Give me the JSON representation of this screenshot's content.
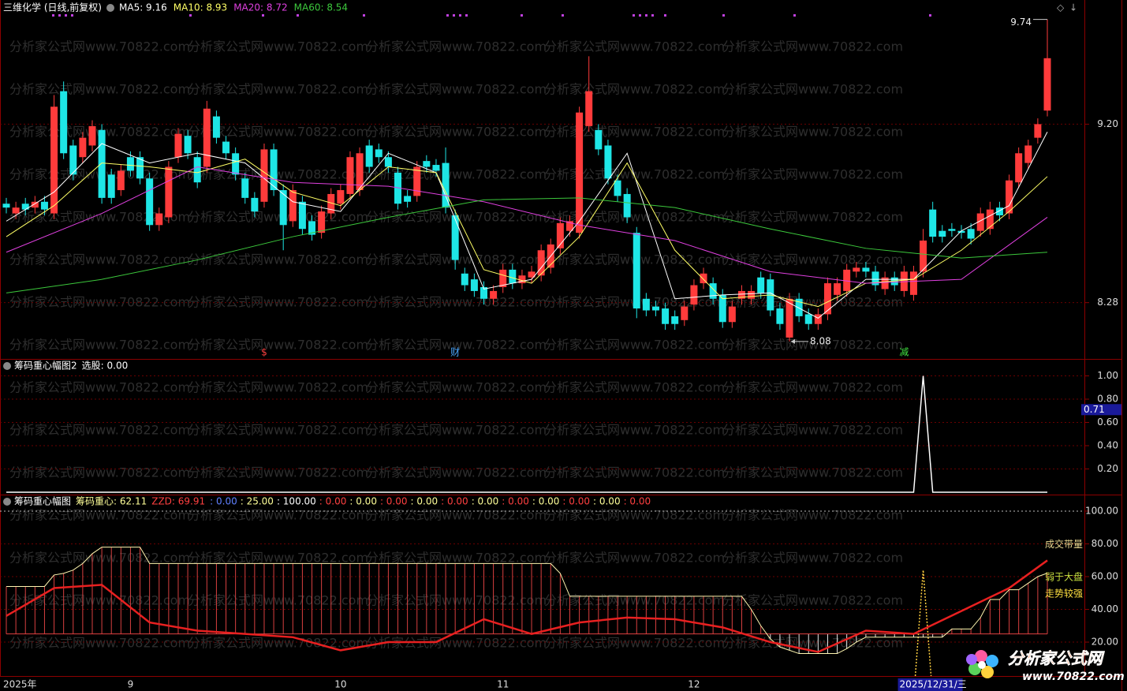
{
  "chart_data": [
    {
      "type": "candlestick",
      "title": "三维化学 (日线,前复权)",
      "open": [
        8.79,
        8.74,
        8.79,
        8.77,
        8.8,
        8.74,
        9.37,
        9.09,
        9.03,
        9.09,
        9.17,
        8.94,
        8.86,
        9.03,
        9.03,
        8.92,
        8.68,
        8.72,
        9.03,
        9.14,
        9.03,
        8.98,
        9.24,
        9.11,
        9.05,
        8.92,
        8.82,
        8.8,
        9.07,
        8.86,
        8.7,
        8.8,
        8.7,
        8.64,
        8.74,
        8.79,
        8.84,
        8.86,
        9.09,
        9.07,
        9.03,
        8.95,
        8.83,
        8.83,
        9.01,
        8.99,
        9.0,
        8.73,
        8.43,
        8.4,
        8.36,
        8.3,
        8.36,
        8.45,
        8.38,
        8.41,
        8.42,
        8.46,
        8.56,
        8.65,
        8.64,
        9.19,
        9.17,
        9.09,
        8.91,
        8.84,
        8.64,
        8.3,
        8.26,
        8.25,
        8.21,
        8.19,
        8.27,
        8.38,
        8.38,
        8.32,
        8.18,
        8.3,
        8.3,
        8.41,
        8.4,
        8.25,
        8.1,
        8.3,
        8.22,
        8.17,
        8.22,
        8.32,
        8.34,
        8.44,
        8.46,
        8.44,
        8.35,
        8.41,
        8.34,
        8.32,
        8.44,
        8.76,
        8.65,
        8.66,
        8.65,
        8.66,
        8.65,
        8.66,
        8.77,
        8.74,
        8.9,
        9.0,
        9.13,
        9.27
      ],
      "close": [
        8.77,
        8.77,
        8.76,
        8.8,
        8.76,
        9.29,
        9.05,
        8.94,
        9.13,
        9.19,
        8.82,
        8.82,
        8.96,
        8.96,
        8.92,
        8.68,
        8.74,
        8.98,
        9.15,
        9.05,
        8.9,
        9.28,
        9.13,
        9.05,
        8.94,
        8.82,
        8.75,
        9.07,
        8.86,
        8.68,
        8.86,
        8.66,
        8.63,
        8.75,
        8.84,
        8.86,
        9.03,
        9.05,
        8.98,
        9.03,
        8.98,
        8.79,
        8.8,
        8.98,
        8.98,
        8.96,
        8.77,
        8.5,
        8.37,
        8.34,
        8.3,
        8.34,
        8.45,
        8.38,
        8.42,
        8.44,
        8.55,
        8.58,
        8.69,
        8.7,
        9.26,
        9.37,
        9.07,
        8.92,
        8.83,
        8.72,
        8.25,
        8.24,
        8.24,
        8.17,
        8.17,
        8.26,
        8.37,
        8.43,
        8.3,
        8.18,
        8.26,
        8.34,
        8.34,
        8.33,
        8.24,
        8.17,
        8.3,
        8.21,
        8.17,
        8.22,
        8.38,
        8.38,
        8.45,
        8.46,
        8.44,
        8.37,
        8.41,
        8.37,
        8.44,
        8.44,
        8.6,
        8.62,
        8.62,
        8.65,
        8.64,
        8.61,
        8.74,
        8.76,
        8.73,
        8.91,
        9.05,
        9.09,
        9.2,
        9.54
      ],
      "high": [
        8.82,
        8.8,
        8.82,
        8.83,
        8.83,
        9.35,
        9.42,
        9.12,
        9.16,
        9.22,
        9.2,
        8.97,
        8.99,
        9.06,
        9.06,
        8.95,
        8.77,
        9.01,
        9.18,
        9.17,
        9.06,
        9.32,
        9.27,
        9.14,
        9.08,
        8.95,
        8.85,
        9.1,
        9.1,
        8.89,
        8.89,
        8.83,
        8.73,
        8.78,
        8.87,
        8.89,
        9.06,
        9.08,
        9.12,
        9.1,
        9.06,
        8.98,
        8.86,
        9.01,
        9.04,
        9.02,
        9.08,
        8.76,
        8.46,
        8.43,
        8.39,
        8.37,
        8.48,
        8.48,
        8.45,
        8.47,
        8.58,
        8.61,
        8.72,
        8.73,
        9.29,
        9.55,
        9.2,
        9.12,
        8.94,
        8.87,
        8.67,
        8.33,
        8.29,
        8.28,
        8.24,
        8.29,
        8.4,
        8.46,
        8.41,
        8.35,
        8.29,
        8.37,
        8.37,
        8.44,
        8.43,
        8.28,
        8.33,
        8.33,
        8.25,
        8.25,
        8.41,
        8.41,
        8.48,
        8.49,
        8.49,
        8.47,
        8.44,
        8.44,
        8.47,
        8.47,
        8.66,
        8.8,
        8.68,
        8.69,
        8.68,
        8.69,
        8.77,
        8.8,
        8.8,
        8.94,
        9.08,
        9.12,
        9.23,
        9.74
      ],
      "low": [
        8.74,
        8.71,
        8.73,
        8.74,
        8.73,
        8.71,
        9.02,
        8.91,
        9.0,
        9.06,
        8.79,
        8.79,
        8.83,
        8.93,
        8.89,
        8.65,
        8.65,
        8.69,
        9.0,
        9.02,
        8.87,
        8.95,
        9.1,
        9.02,
        8.91,
        8.79,
        8.72,
        8.77,
        8.83,
        8.55,
        8.67,
        8.63,
        8.6,
        8.61,
        8.71,
        8.76,
        8.81,
        8.83,
        8.95,
        9.0,
        8.95,
        8.76,
        8.77,
        8.8,
        8.95,
        8.93,
        8.74,
        8.45,
        8.34,
        8.31,
        8.27,
        8.27,
        8.33,
        8.35,
        8.35,
        8.38,
        8.39,
        8.43,
        8.53,
        8.62,
        8.61,
        9.16,
        9.04,
        8.89,
        8.8,
        8.69,
        8.2,
        8.21,
        8.21,
        8.14,
        8.14,
        8.16,
        8.24,
        8.35,
        8.27,
        8.15,
        8.15,
        8.27,
        8.27,
        8.3,
        8.21,
        8.14,
        8.08,
        8.18,
        8.14,
        8.14,
        8.19,
        8.29,
        8.31,
        8.41,
        8.41,
        8.34,
        8.32,
        8.34,
        8.31,
        8.29,
        8.41,
        8.59,
        8.59,
        8.62,
        8.61,
        8.58,
        8.62,
        8.63,
        8.7,
        8.71,
        8.87,
        8.97,
        9.1,
        9.24
      ],
      "up_color": "#ff3b3b",
      "down_color": "#1ee6e6",
      "series": [
        {
          "name": "MA5: 9.16",
          "color": "#ffffff",
          "x": [
            0,
            5,
            10,
            15,
            20,
            25,
            30,
            35,
            40,
            45,
            50,
            55,
            60,
            65,
            70,
            75,
            80,
            85,
            90,
            95,
            100,
            105,
            109
          ],
          "values": [
            8.7,
            8.85,
            9.1,
            9.0,
            9.05,
            9.0,
            8.8,
            8.75,
            9.05,
            8.95,
            8.35,
            8.4,
            8.7,
            9.05,
            8.3,
            8.32,
            8.33,
            8.2,
            8.4,
            8.4,
            8.65,
            8.78,
            9.16
          ]
        },
        {
          "name": "MA10: 8.93",
          "color": "#ffff66",
          "x": [
            0,
            5,
            10,
            15,
            20,
            25,
            30,
            35,
            40,
            45,
            50,
            55,
            60,
            65,
            70,
            75,
            80,
            85,
            90,
            95,
            100,
            105,
            109
          ],
          "values": [
            8.62,
            8.78,
            9.0,
            8.98,
            8.95,
            9.02,
            8.85,
            8.78,
            8.98,
            8.95,
            8.45,
            8.38,
            8.62,
            9.0,
            8.55,
            8.3,
            8.32,
            8.26,
            8.38,
            8.4,
            8.55,
            8.75,
            8.93
          ]
        },
        {
          "name": "MA20: 8.72",
          "color": "#e040e0",
          "x": [
            0,
            10,
            20,
            30,
            40,
            50,
            60,
            70,
            80,
            90,
            100,
            109
          ],
          "values": [
            8.54,
            8.74,
            8.98,
            8.9,
            8.88,
            8.8,
            8.68,
            8.6,
            8.44,
            8.38,
            8.4,
            8.72
          ]
        },
        {
          "name": "MA60: 8.54",
          "color": "#3cc83c",
          "x": [
            0,
            10,
            20,
            30,
            40,
            50,
            60,
            70,
            80,
            90,
            100,
            109
          ],
          "values": [
            8.33,
            8.4,
            8.5,
            8.62,
            8.72,
            8.81,
            8.82,
            8.77,
            8.66,
            8.56,
            8.51,
            8.54
          ]
        }
      ],
      "ylim": [
        7.99,
        9.84
      ],
      "yticks": [
        {
          "value": 9.2,
          "label": "9.20"
        },
        8.28
      ],
      "annotations": [
        {
          "value": 9.74,
          "index": 109
        },
        {
          "value": 8.08,
          "index": 82
        }
      ],
      "markers": [
        {
          "text": "$",
          "index": 27,
          "color": "#ff4040"
        },
        {
          "text": "财",
          "index": 47,
          "color": "#4aa8ff"
        },
        {
          "text": "减",
          "index": 94,
          "color": "#40e040"
        }
      ]
    },
    {
      "type": "line",
      "title": "筹码重心幅图2",
      "subtitle": "选股: 0.00",
      "color": "#ffffff",
      "values": [
        0,
        0,
        0,
        0,
        0,
        0,
        0,
        0,
        0,
        0,
        0,
        0,
        0,
        0,
        0,
        0,
        0,
        0,
        0,
        0,
        0,
        0,
        0,
        0,
        0,
        0,
        0,
        0,
        0,
        0,
        0,
        0,
        0,
        0,
        0,
        0,
        0,
        0,
        0,
        0,
        0,
        0,
        0,
        0,
        0,
        0,
        0,
        0,
        0,
        0,
        0,
        0,
        0,
        0,
        0,
        0,
        0,
        0,
        0,
        0,
        0,
        0,
        0,
        0,
        0,
        0,
        0,
        0,
        0,
        0,
        0,
        0,
        0,
        0,
        0,
        0,
        0,
        0,
        0,
        0,
        0,
        0,
        0,
        0,
        0,
        0,
        0,
        0,
        0,
        0,
        0,
        0,
        0,
        0,
        0,
        0,
        1,
        0,
        0,
        0,
        0,
        0,
        0,
        0,
        0,
        0,
        0,
        0,
        0,
        0
      ],
      "ylim": [
        0,
        1.146
      ],
      "yticks": [
        {
          "value": 0.2,
          "label": "0.20"
        },
        {
          "value": 0.4,
          "label": "0.40"
        },
        {
          "value": 0.6,
          "label": "0.60"
        },
        {
          "value": 0.8,
          "label": "0.80"
        },
        {
          "value": 1,
          "label": "1.00"
        }
      ],
      "cursor_value": 0.71
    },
    {
      "type": "line",
      "title": "筹码重心幅图",
      "series": [
        {
          "name": "筹码重心: 62.11",
          "color": "#fff6b0",
          "values": [
            54,
            54,
            54,
            54,
            54,
            61,
            62,
            64,
            68,
            74,
            78,
            78,
            78,
            78,
            78,
            68,
            68,
            68,
            68,
            68,
            68,
            68,
            68,
            68,
            68,
            68,
            68,
            68,
            68,
            68,
            68,
            68,
            68,
            68,
            68,
            68,
            68,
            68,
            68,
            68,
            68,
            68,
            68,
            68,
            68,
            68,
            68,
            68,
            68,
            68,
            68,
            68,
            68,
            68,
            68,
            68,
            68,
            68,
            62,
            48,
            48,
            48,
            48,
            48,
            48,
            48,
            48,
            48,
            48,
            48,
            48,
            48,
            48,
            48,
            48,
            48,
            48,
            48,
            40,
            30,
            22,
            17,
            15,
            13,
            13,
            13,
            13,
            13,
            16,
            20,
            23,
            23,
            23,
            23,
            23,
            23,
            23,
            23,
            23,
            28,
            28,
            28,
            35,
            46,
            46,
            52,
            52,
            56,
            60,
            62.11
          ]
        },
        {
          "name": "ZZD: 69.91",
          "color": "#e82020",
          "x": [
            0,
            5,
            10,
            15,
            20,
            25,
            30,
            35,
            40,
            45,
            50,
            55,
            60,
            65,
            70,
            75,
            80,
            85,
            90,
            95,
            100,
            105,
            109
          ],
          "values": [
            36,
            53,
            55,
            32,
            27,
            25,
            23,
            15,
            20,
            20,
            34,
            25,
            32,
            35,
            34,
            29,
            20,
            14,
            27,
            25,
            39,
            53,
            69.91
          ]
        }
      ],
      "baseline": 25,
      "header_values": [
        ": 0.00",
        ": 25.00",
        ": 100.00",
        ": 0.00",
        ": 0.00",
        ": 0.00",
        ": 0.00",
        ": 0.00",
        ": 0.00",
        ": 0.00",
        ": 0.00",
        ": 0.00",
        ": 0.00",
        ": 0.00"
      ],
      "side_labels": [
        {
          "text": "成交带量",
          "color": "#e8d890",
          "value": 80
        },
        {
          "text": "弱于大盘",
          "color": "#c8e040",
          "value": 60
        },
        {
          "text": "走势较强",
          "color": "#ffe040",
          "value": 50
        }
      ],
      "ylim": [
        -0.7,
        110.1
      ],
      "yticks": [
        {
          "value": 20,
          "label": "20.00"
        },
        {
          "value": 40,
          "label": "40.00"
        },
        {
          "value": 60,
          "label": "60.00"
        },
        {
          "value": 80,
          "label": "80.00"
        },
        {
          "value": 100,
          "label": "100.00"
        }
      ]
    }
  ],
  "x_labels": [
    {
      "label": "2025年",
      "index": 0
    },
    {
      "label": "9",
      "index": 13
    },
    {
      "label": "10",
      "index": 35
    },
    {
      "label": "11",
      "index": 52
    },
    {
      "label": "12",
      "index": 72
    }
  ],
  "cursor_date": {
    "label": "2025/12/31/三",
    "index": 96
  },
  "watermark": "分析家公式网www.70822.com",
  "logo": {
    "name": "分析家公式网",
    "url": "www.70822.com"
  }
}
